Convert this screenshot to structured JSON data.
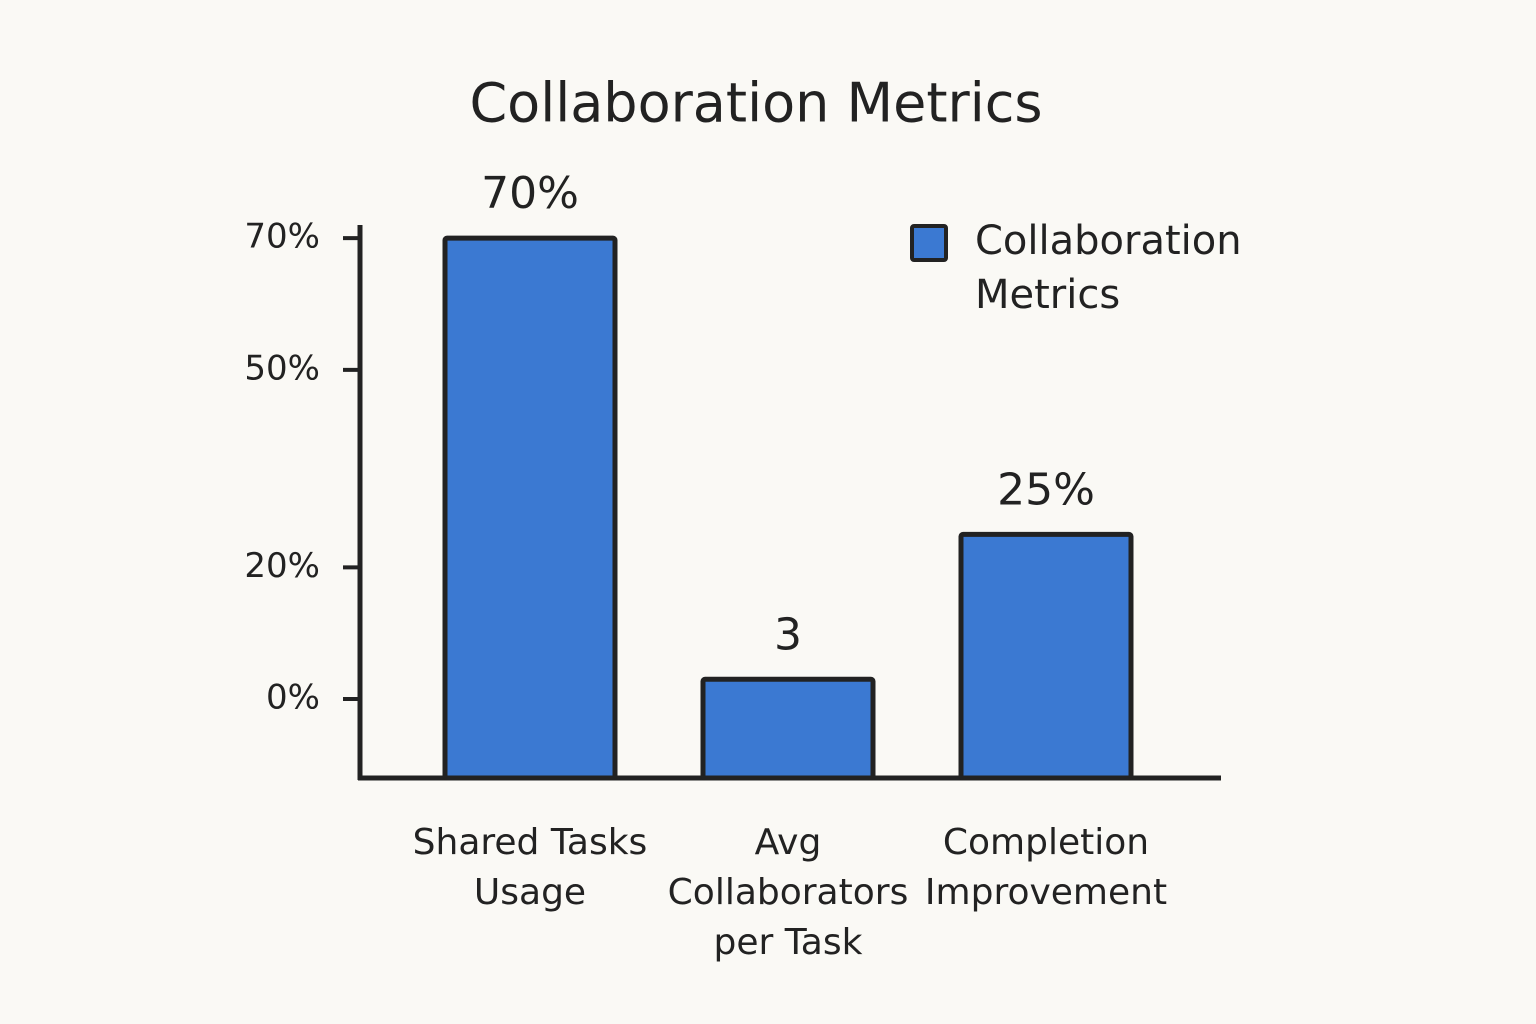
{
  "chart_data": {
    "type": "bar",
    "title": "Collaboration Metrics",
    "categories": [
      "Shared Tasks Usage",
      "Avg Collaborators per Task",
      "Completion Improvement"
    ],
    "series": [
      {
        "name": "Collaboration Metrics",
        "color": "#3b79d2",
        "values": [
          70,
          3,
          25
        ],
        "value_labels": [
          "70%",
          "3",
          "25%"
        ]
      }
    ],
    "ylim": [
      -12,
      72
    ],
    "yticks": [
      {
        "value": 0,
        "label": "0%"
      },
      {
        "value": 20,
        "label": "20%"
      },
      {
        "value": 50,
        "label": "50%"
      },
      {
        "value": 70,
        "label": "70%"
      }
    ],
    "legend": "top-right"
  }
}
